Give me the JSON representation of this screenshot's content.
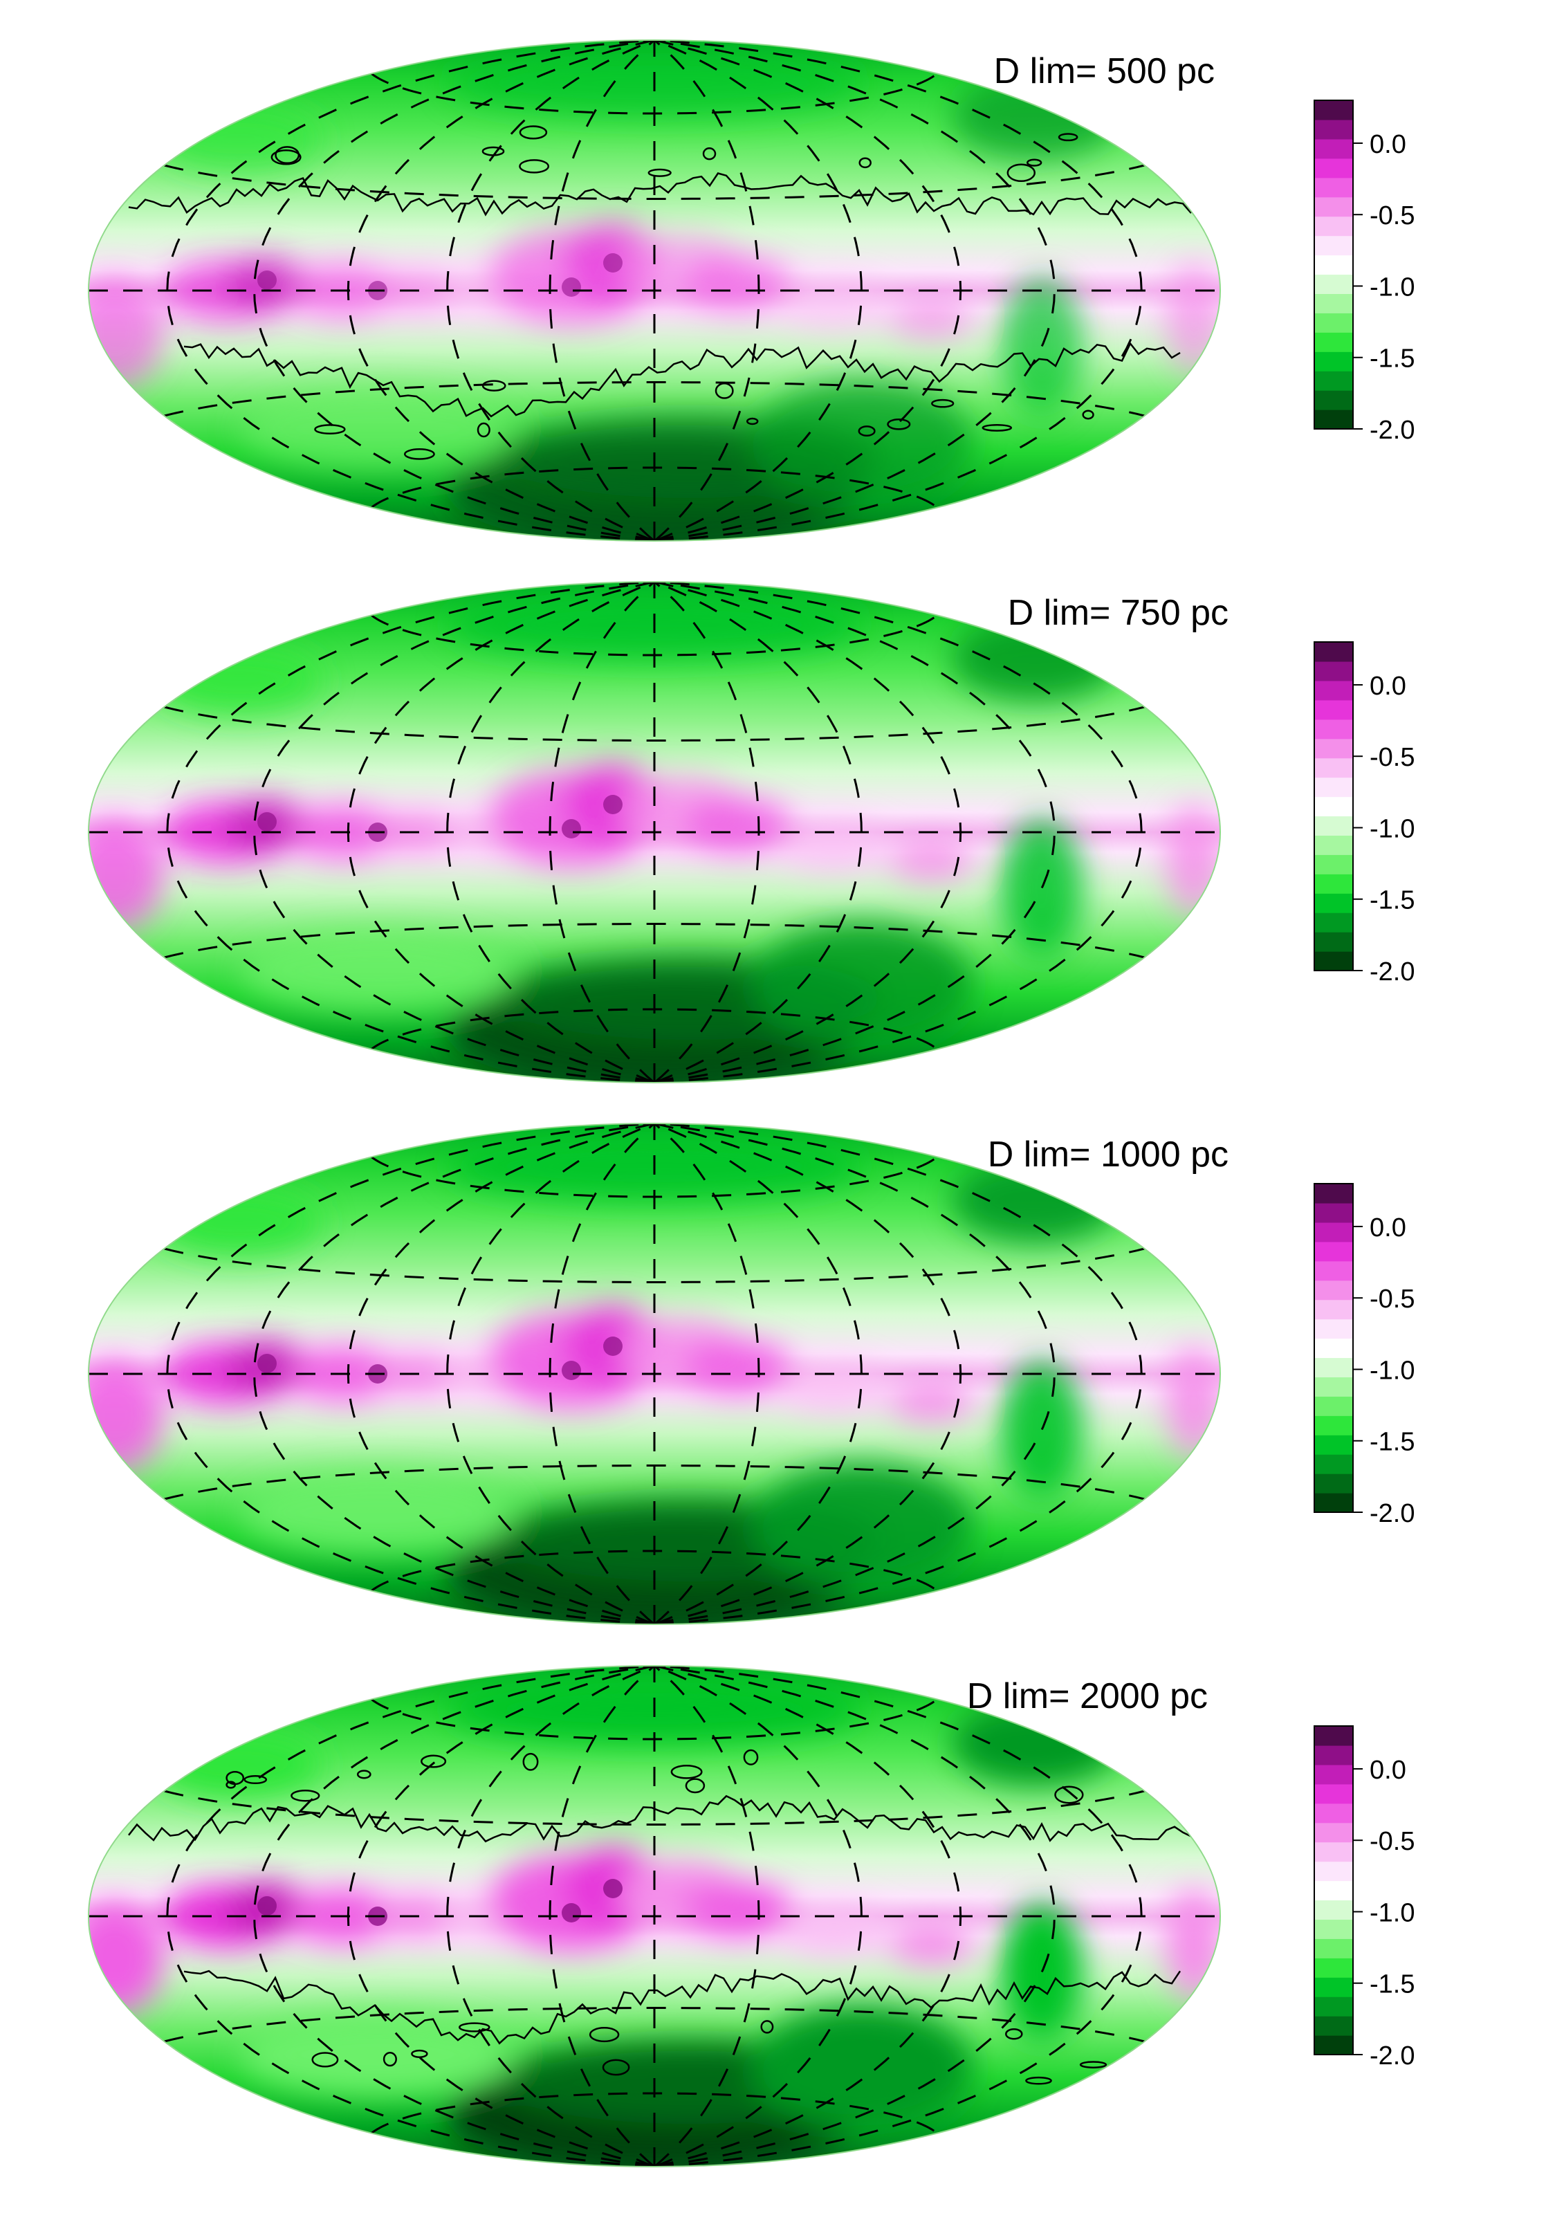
{
  "chart_data": [
    {
      "type": "heatmap",
      "projection": "aitoff-hammer",
      "title": "D lim= 500 pc",
      "colorbar": {
        "range": [
          -2.0,
          0.3
        ],
        "ticks": [
          0.0,
          -0.5,
          -1.0,
          -1.5,
          -2.0
        ],
        "tick_labels": [
          "0.0",
          "-0.5",
          "-1.0",
          "-1.5",
          "-2.0"
        ]
      },
      "contours": true,
      "grid": "dashed"
    },
    {
      "type": "heatmap",
      "projection": "aitoff-hammer",
      "title": "D lim= 750 pc",
      "colorbar": {
        "range": [
          -2.0,
          0.3
        ],
        "ticks": [
          0.0,
          -0.5,
          -1.0,
          -1.5,
          -2.0
        ],
        "tick_labels": [
          "0.0",
          "-0.5",
          "-1.0",
          "-1.5",
          "-2.0"
        ]
      },
      "contours": false,
      "grid": "dashed"
    },
    {
      "type": "heatmap",
      "projection": "aitoff-hammer",
      "title": "D lim= 1000 pc",
      "colorbar": {
        "range": [
          -2.0,
          0.3
        ],
        "ticks": [
          0.0,
          -0.5,
          -1.0,
          -1.5,
          -2.0
        ],
        "tick_labels": [
          "0.0",
          "-0.5",
          "-1.0",
          "-1.5",
          "-2.0"
        ]
      },
      "contours": false,
      "grid": "dashed"
    },
    {
      "type": "heatmap",
      "projection": "aitoff-hammer",
      "title": "D lim= 2000 pc",
      "colorbar": {
        "range": [
          -2.0,
          0.3
        ],
        "ticks": [
          0.0,
          -0.5,
          -1.0,
          -1.5,
          -2.0
        ],
        "tick_labels": [
          "0.0",
          "-0.5",
          "-1.0",
          "-1.5",
          "-2.0"
        ]
      },
      "contours": true,
      "grid": "dashed"
    }
  ],
  "colors": {
    "scale": [
      "#00400c",
      "#006b17",
      "#009922",
      "#00c428",
      "#2ee63b",
      "#6cf06a",
      "#a6f7a0",
      "#d6fbd2",
      "#ffffff",
      "#fce6fc",
      "#f9c0f4",
      "#f48fea",
      "#ef5fe4",
      "#e634da",
      "#c21eb8",
      "#8f0f88",
      "#4f0a4c"
    ]
  }
}
